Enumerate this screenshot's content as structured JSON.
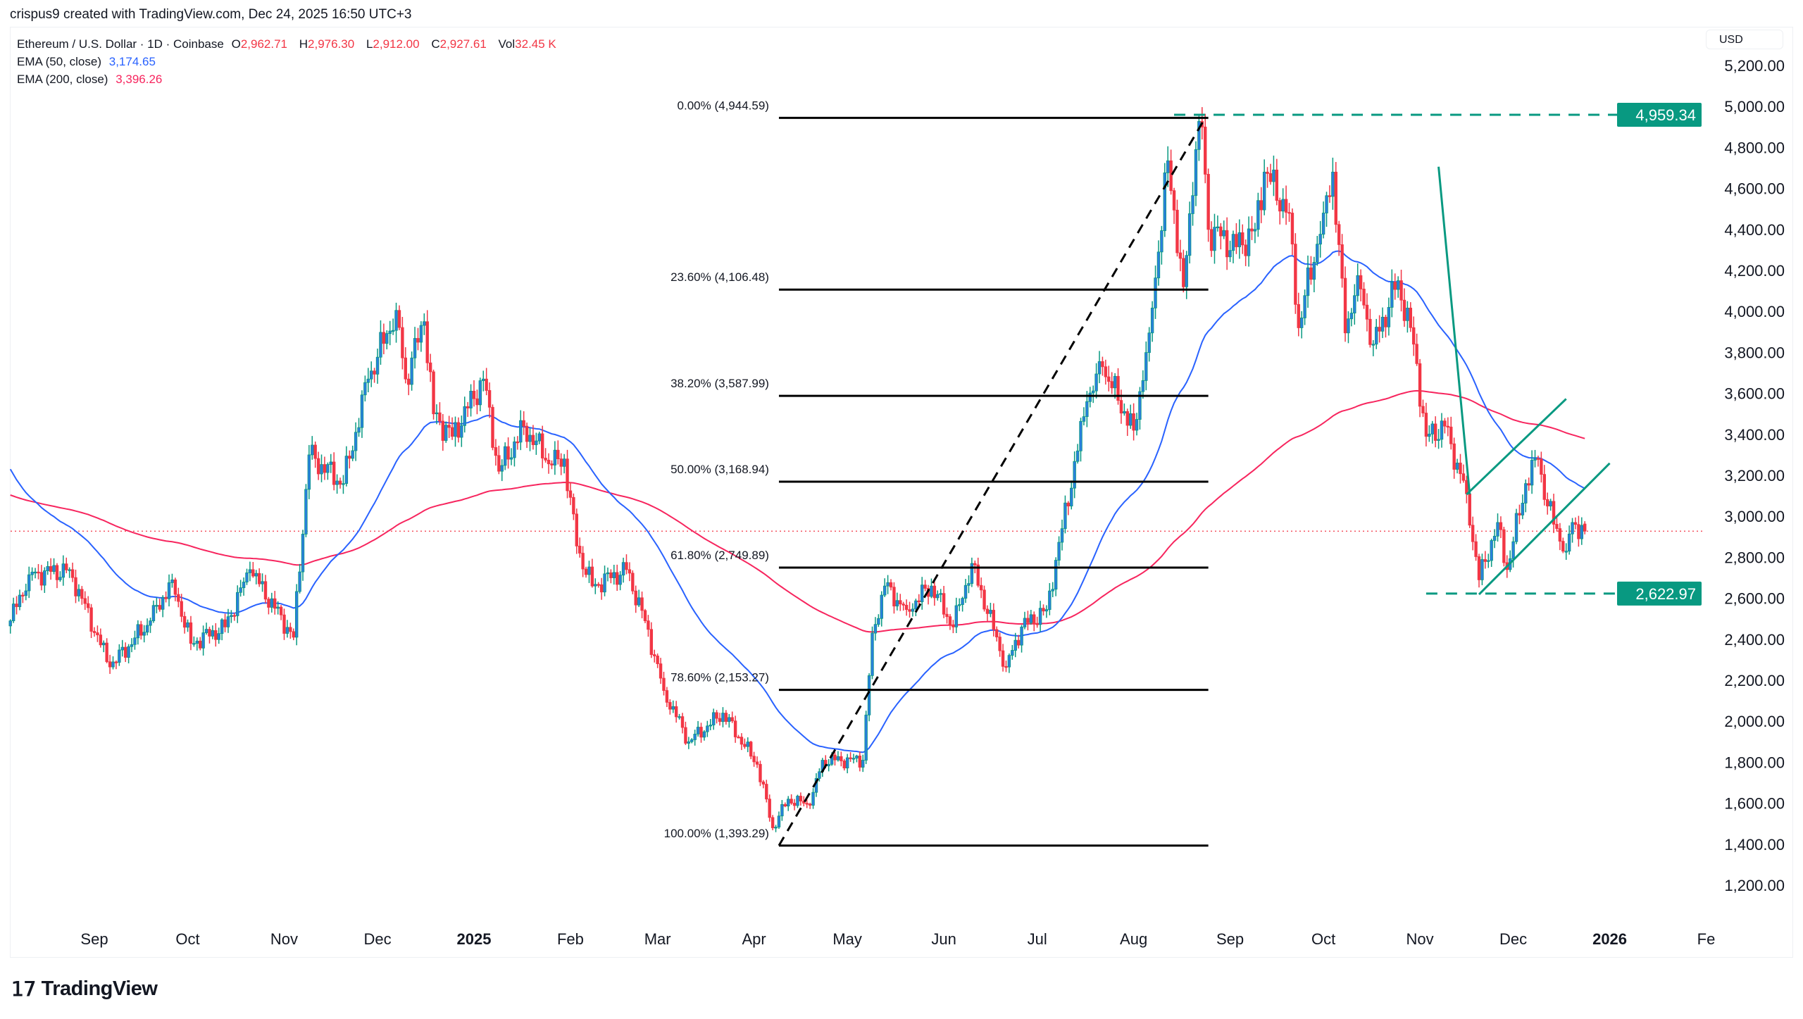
{
  "credit": "crispus9 created with TradingView.com, Dec 24, 2025 16:50 UTC+3",
  "legend": {
    "symbol": "Ethereum / U.S. Dollar · 1D · Coinbase",
    "o_label": "O",
    "open": "2,962.71",
    "h_label": "H",
    "high": "2,976.30",
    "l_label": "L",
    "low": "2,912.00",
    "c_label": "C",
    "close": "2,927.61",
    "vol_label": "Vol",
    "volume": "32.45 K",
    "ema50_label": "EMA (50, close)",
    "ema50_value": "3,174.65",
    "ema200_label": "EMA (200, close)",
    "ema200_value": "3,396.26"
  },
  "currency": "USD",
  "logo_text": "TradingView",
  "colors": {
    "bull_body": "#2a7fde",
    "bull_wick": "#089981",
    "bear": "#f23645",
    "ema50": "#2962ff",
    "ema200": "#f7255e",
    "drawings": "#089981",
    "fib": "#000000"
  },
  "price_axis": {
    "ticks": [
      "5,200.00",
      "5,000.00",
      "4,800.00",
      "4,600.00",
      "4,400.00",
      "4,200.00",
      "4,000.00",
      "3,800.00",
      "3,600.00",
      "3,400.00",
      "3,200.00",
      "3,000.00",
      "2,800.00",
      "2,600.00",
      "2,400.00",
      "2,200.00",
      "2,000.00",
      "1,800.00",
      "1,600.00",
      "1,400.00",
      "1,200.00"
    ],
    "badges": [
      {
        "label": "4,959.34",
        "value": 4959.34
      },
      {
        "label": "2,622.97",
        "value": 2622.97
      }
    ]
  },
  "time_axis": [
    {
      "label": "Sep",
      "date": "2024-09-01"
    },
    {
      "label": "Oct",
      "date": "2024-10-01"
    },
    {
      "label": "Nov",
      "date": "2024-11-01"
    },
    {
      "label": "Dec",
      "date": "2024-12-01"
    },
    {
      "label": "2025",
      "date": "2025-01-01",
      "bold": true
    },
    {
      "label": "Feb",
      "date": "2025-02-01"
    },
    {
      "label": "Mar",
      "date": "2025-03-01"
    },
    {
      "label": "Apr",
      "date": "2025-04-01"
    },
    {
      "label": "May",
      "date": "2025-05-01"
    },
    {
      "label": "Jun",
      "date": "2025-06-01"
    },
    {
      "label": "Jul",
      "date": "2025-07-01"
    },
    {
      "label": "Aug",
      "date": "2025-08-01"
    },
    {
      "label": "Sep",
      "date": "2025-09-01"
    },
    {
      "label": "Oct",
      "date": "2025-10-01"
    },
    {
      "label": "Nov",
      "date": "2025-11-01"
    },
    {
      "label": "Dec",
      "date": "2025-12-01"
    },
    {
      "label": "2026",
      "date": "2026-01-01",
      "bold": true
    },
    {
      "label": "Fe",
      "date": "2026-02-01"
    }
  ],
  "chart_data": {
    "type": "candlestick",
    "ylim": [
      1100,
      5280
    ],
    "current_price": 2927.61,
    "last_candle": {
      "date": "2025-12-24",
      "open": 2962.71,
      "high": 2976.3,
      "low": 2912.0,
      "close": 2927.61
    },
    "close_path": [
      [
        "2024-08-05",
        2490
      ],
      [
        "2024-08-11",
        2715
      ],
      [
        "2024-08-24",
        2740
      ],
      [
        "2024-09-06",
        2265
      ],
      [
        "2024-09-19",
        2490
      ],
      [
        "2024-09-26",
        2690
      ],
      [
        "2024-10-02",
        2380
      ],
      [
        "2024-10-13",
        2460
      ],
      [
        "2024-10-21",
        2740
      ],
      [
        "2024-11-04",
        2410
      ],
      [
        "2024-11-09",
        3300
      ],
      [
        "2024-11-20",
        3160
      ],
      [
        "2024-11-28",
        3670
      ],
      [
        "2024-12-07",
        4005
      ],
      [
        "2024-12-10",
        3670
      ],
      [
        "2024-12-16",
        3950
      ],
      [
        "2024-12-19",
        3500
      ],
      [
        "2024-12-25",
        3390
      ],
      [
        "2025-01-04",
        3670
      ],
      [
        "2025-01-09",
        3220
      ],
      [
        "2025-01-17",
        3440
      ],
      [
        "2025-01-26",
        3250
      ],
      [
        "2025-01-30",
        3280
      ],
      [
        "2025-02-03",
        2855
      ],
      [
        "2025-02-08",
        2660
      ],
      [
        "2025-02-19",
        2740
      ],
      [
        "2025-02-25",
        2490
      ],
      [
        "2025-03-03",
        2150
      ],
      [
        "2025-03-11",
        1900
      ],
      [
        "2025-03-22",
        2040
      ],
      [
        "2025-04-02",
        1790
      ],
      [
        "2025-04-07",
        1480
      ],
      [
        "2025-04-12",
        1620
      ],
      [
        "2025-04-19",
        1590
      ],
      [
        "2025-04-23",
        1810
      ],
      [
        "2025-05-06",
        1810
      ],
      [
        "2025-05-09",
        2430
      ],
      [
        "2025-05-13",
        2660
      ],
      [
        "2025-05-20",
        2545
      ],
      [
        "2025-05-28",
        2660
      ],
      [
        "2025-06-04",
        2460
      ],
      [
        "2025-06-10",
        2770
      ],
      [
        "2025-06-21",
        2265
      ],
      [
        "2025-06-26",
        2460
      ],
      [
        "2025-07-04",
        2545
      ],
      [
        "2025-07-09",
        2940
      ],
      [
        "2025-07-17",
        3560
      ],
      [
        "2025-07-22",
        3730
      ],
      [
        "2025-08-01",
        3420
      ],
      [
        "2025-08-06",
        3895
      ],
      [
        "2025-08-12",
        4735
      ],
      [
        "2025-08-17",
        4120
      ],
      [
        "2025-08-21",
        4790
      ],
      [
        "2025-08-23",
        4900
      ],
      [
        "2025-08-25",
        4400
      ],
      [
        "2025-09-03",
        4315
      ],
      [
        "2025-09-09",
        4400
      ],
      [
        "2025-09-12",
        4680
      ],
      [
        "2025-09-20",
        4480
      ],
      [
        "2025-09-23",
        3920
      ],
      [
        "2025-10-01",
        4480
      ],
      [
        "2025-10-04",
        4680
      ],
      [
        "2025-10-08",
        3895
      ],
      [
        "2025-10-12",
        4175
      ],
      [
        "2025-10-17",
        3840
      ],
      [
        "2025-10-25",
        4150
      ],
      [
        "2025-10-30",
        3840
      ],
      [
        "2025-11-03",
        3390
      ],
      [
        "2025-11-09",
        3440
      ],
      [
        "2025-11-16",
        3110
      ],
      [
        "2025-11-20",
        2690
      ],
      [
        "2025-11-26",
        2970
      ],
      [
        "2025-11-29",
        2740
      ],
      [
        "2025-12-05",
        3160
      ],
      [
        "2025-12-09",
        3280
      ],
      [
        "2025-12-12",
        3050
      ],
      [
        "2025-12-18",
        2830
      ],
      [
        "2025-12-20",
        2970
      ],
      [
        "2025-12-24",
        2927.61
      ]
    ],
    "fibonacci": {
      "from": {
        "date": "2025-04-09",
        "price": 1393.29
      },
      "to": {
        "date": "2025-08-24",
        "price": 4944.59
      },
      "end_date": "2025-08-25",
      "levels": [
        {
          "label": "0.00% (4,944.59)",
          "price": 4944.59
        },
        {
          "label": "23.60% (4,106.48)",
          "price": 4106.48
        },
        {
          "label": "38.20% (3,587.99)",
          "price": 3587.99
        },
        {
          "label": "50.00% (3,168.94)",
          "price": 3168.94
        },
        {
          "label": "61.80% (2,749.89)",
          "price": 2749.89
        },
        {
          "label": "78.60% (2,153.27)",
          "price": 2153.27
        },
        {
          "label": "100.00% (1,393.29)",
          "price": 1393.29
        }
      ]
    },
    "horizontal_lines": [
      {
        "price": 4959.34,
        "from": "2025-08-14"
      },
      {
        "price": 2622.97,
        "from": "2025-11-03"
      }
    ],
    "trend_lines": [
      {
        "name": "downtrend",
        "points": [
          [
            "2025-11-07",
            4706
          ],
          [
            "2025-11-17",
            3107
          ]
        ]
      },
      {
        "name": "channel-upper",
        "points": [
          [
            "2025-11-16",
            3107
          ],
          [
            "2025-12-18",
            3573
          ]
        ]
      },
      {
        "name": "channel-lower",
        "points": [
          [
            "2025-11-20",
            2619
          ],
          [
            "2026-01-01",
            3259
          ]
        ]
      }
    ]
  }
}
